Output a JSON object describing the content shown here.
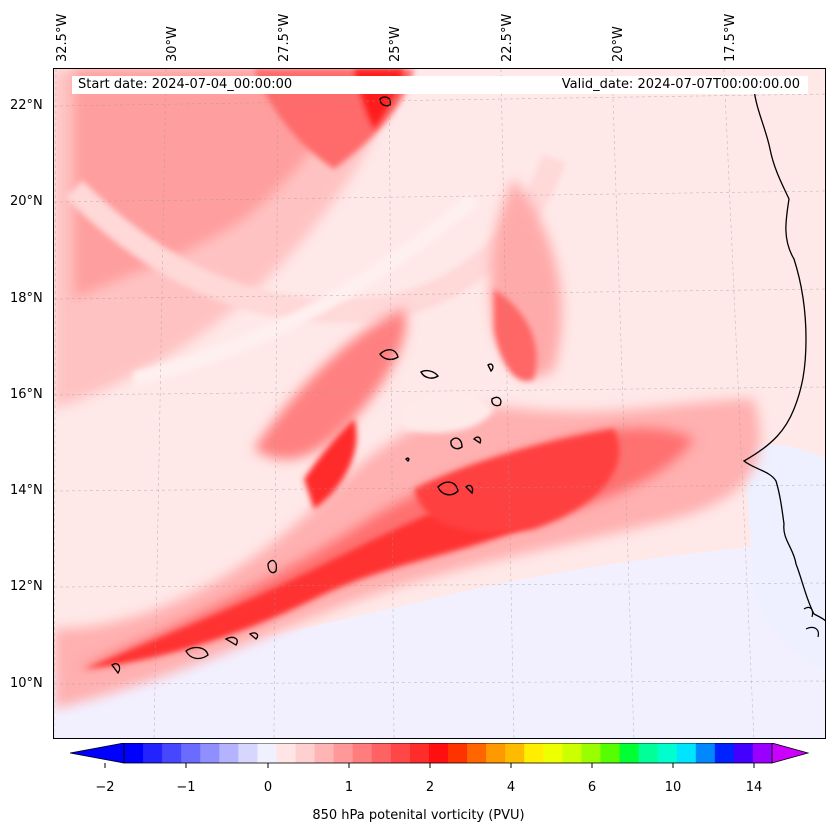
{
  "map": {
    "title_left": "Start date: 2024-07-04_00:00:00",
    "title_right": "Valid_date: 2024-07-07T00:00:00.00",
    "lon_labels": [
      "32.5°W",
      "30°W",
      "27.5°W",
      "25°W",
      "22.5°W",
      "20°W",
      "17.5°W"
    ],
    "lat_labels": [
      "22°N",
      "20°N",
      "18°N",
      "16°N",
      "14°N",
      "12°N",
      "10°N"
    ],
    "features": [
      "Cape Verde islands",
      "West African coastline"
    ]
  },
  "colorbar": {
    "title": "850 hPa potenital vorticity (PVU)",
    "ticks": [
      "−2",
      "−1",
      "0",
      "1",
      "2",
      "4",
      "6",
      "10",
      "14"
    ],
    "levels": [
      "-2",
      "-1.75",
      "-1.5",
      "-1.25",
      "-1",
      "-0.75",
      "-0.5",
      "-0.25",
      "0",
      "0.25",
      "0.5",
      "0.75",
      "1",
      "1.25",
      "1.5",
      "1.75",
      "2",
      "2.5",
      "3",
      "3.5",
      "4",
      "4.5",
      "5",
      "5.5",
      "6",
      "7",
      "8",
      "9",
      "10",
      "11",
      "12",
      "13",
      "14"
    ],
    "colors": [
      "#0000ff",
      "#2323ff",
      "#4747ff",
      "#6b6bff",
      "#8f8fff",
      "#b3b3ff",
      "#d6d6ff",
      "#f0f0ff",
      "#ffe5e5",
      "#ffd0d0",
      "#ffb5b5",
      "#ff9898",
      "#ff7d7d",
      "#ff6262",
      "#ff4747",
      "#ff2c2c",
      "#ff0f0f",
      "#ff3300",
      "#ff6600",
      "#ff9900",
      "#ffbb00",
      "#ffee00",
      "#eeff00",
      "#ccff00",
      "#99ff00",
      "#55ff00",
      "#00ff33",
      "#00ff99",
      "#00ffcc",
      "#00e5ff",
      "#0088ff",
      "#0022ff",
      "#4400ff",
      "#9900ff"
    ],
    "under_color": "#0000ff",
    "over_color": "#cc00ff"
  }
}
